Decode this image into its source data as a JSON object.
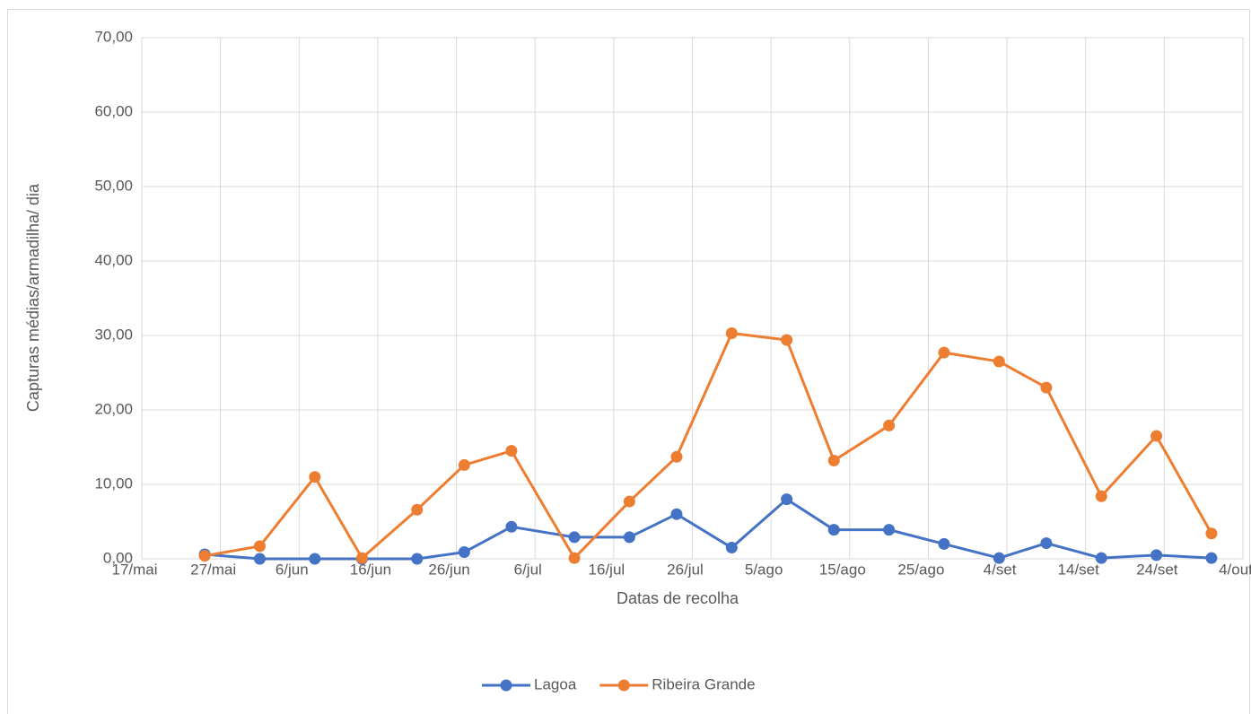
{
  "chart_data": {
    "type": "line",
    "x_label": "Datas de recolha",
    "y_label": "Capturas médias/armadilha/ dia",
    "x": [
      145,
      152,
      159,
      165,
      172,
      178,
      184,
      192,
      199,
      205,
      212,
      219,
      225,
      232,
      239,
      246,
      252,
      259,
      266,
      273
    ],
    "series": [
      {
        "name": "Lagoa",
        "color": "#4472c4",
        "values": [
          0.6,
          0,
          0,
          0,
          0,
          0.9,
          4.3,
          2.9,
          2.9,
          6.0,
          1.5,
          8.0,
          3.9,
          3.9,
          2.0,
          0.1,
          2.1,
          0.1,
          0.5,
          0.1
        ]
      },
      {
        "name": "Ribeira Grande",
        "color": "#ed7d31",
        "values": [
          0.4,
          1.7,
          11.0,
          0.1,
          6.6,
          12.6,
          14.5,
          0.1,
          7.7,
          13.7,
          30.3,
          29.4,
          13.2,
          17.9,
          27.7,
          26.5,
          23.0,
          8.4,
          16.5,
          3.4
        ]
      }
    ],
    "xlim": [
      137,
      277
    ],
    "xticks": [
      {
        "value": 137,
        "label": "17/mai"
      },
      {
        "value": 147,
        "label": "27/mai"
      },
      {
        "value": 157,
        "label": "6/jun"
      },
      {
        "value": 167,
        "label": "16/jun"
      },
      {
        "value": 177,
        "label": "26/jun"
      },
      {
        "value": 187,
        "label": "6/jul"
      },
      {
        "value": 197,
        "label": "16/jul"
      },
      {
        "value": 207,
        "label": "26/jul"
      },
      {
        "value": 217,
        "label": "5/ago"
      },
      {
        "value": 227,
        "label": "15/ago"
      },
      {
        "value": 237,
        "label": "25/ago"
      },
      {
        "value": 247,
        "label": "4/set"
      },
      {
        "value": 257,
        "label": "14/set"
      },
      {
        "value": 267,
        "label": "24/set"
      },
      {
        "value": 277,
        "label": "4/out"
      }
    ],
    "ylim": [
      0,
      70
    ],
    "yticks": [
      {
        "value": 0,
        "label": "0,00"
      },
      {
        "value": 10,
        "label": "10,00"
      },
      {
        "value": 20,
        "label": "20,00"
      },
      {
        "value": 30,
        "label": "30,00"
      },
      {
        "value": 40,
        "label": "40,00"
      },
      {
        "value": 50,
        "label": "50,00"
      },
      {
        "value": 60,
        "label": "60,00"
      },
      {
        "value": 70,
        "label": "70,00"
      }
    ],
    "grid": true,
    "legend": "bottom"
  }
}
